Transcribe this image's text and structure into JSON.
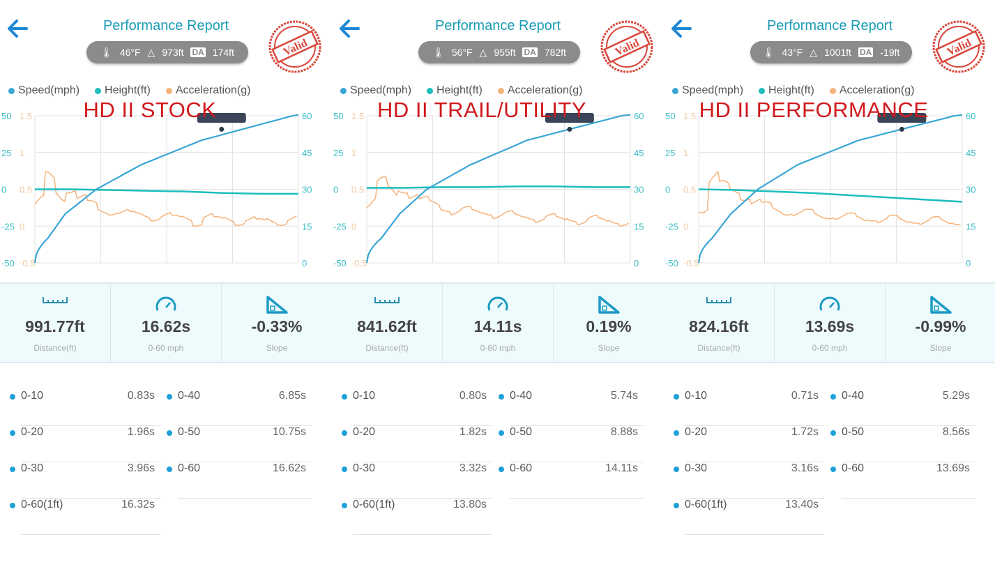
{
  "colors": {
    "speed": "#3aa6d6",
    "height": "#1cbdbd",
    "accel": "#f5b27a",
    "title": "#1a9bb3",
    "caption": "#d0191c",
    "stamp": "#d9463a"
  },
  "legend": [
    "Speed(mph)",
    "Height(ft)",
    "Acceleration(g)"
  ],
  "stats_labels": [
    "Distance(ft)",
    "0-60 mph",
    "Slope"
  ],
  "stamp_text": "Valid",
  "panels": [
    {
      "title": "Performance Report",
      "temp": "46°F",
      "elev": "973ft",
      "da_label": "DA",
      "da": "174ft",
      "caption": "HD II STOCK",
      "distance": "991.77ft",
      "zero_sixty": "16.62s",
      "slope": "-0.33%",
      "splits": [
        {
          "k": "0-10",
          "v": "0.83s"
        },
        {
          "k": "0-40",
          "v": "6.85s"
        },
        {
          "k": "0-20",
          "v": "1.96s"
        },
        {
          "k": "0-50",
          "v": "10.75s"
        },
        {
          "k": "0-30",
          "v": "3.96s"
        },
        {
          "k": "0-60",
          "v": "16.62s"
        },
        {
          "k": "0-60(1ft)",
          "v": "16.32s"
        }
      ],
      "chart_data": {
        "type": "line",
        "left_axis_height": {
          "ticks": [
            "50",
            "25",
            "0",
            "-25",
            "-50"
          ],
          "range": [
            -50,
            50
          ]
        },
        "left_axis_accel": {
          "ticks": [
            "1.5",
            "1",
            "0.5",
            "0",
            "-0.5"
          ],
          "range": [
            -0.5,
            1.5
          ]
        },
        "right_axis_speed": {
          "ticks": [
            "60",
            "45",
            "30",
            "15",
            "0"
          ],
          "range": [
            0,
            60
          ]
        },
        "grid": true,
        "speed": {
          "t": [
            0,
            0.83,
            1.96,
            3.96,
            6.85,
            10.75,
            16.62,
            17
          ],
          "v": [
            0,
            10,
            20,
            30,
            40,
            50,
            60,
            60.3
          ]
        },
        "height": [
          0,
          0,
          -0.5,
          -1,
          -1.5,
          -2.5,
          -3,
          -3
        ],
        "accel": [
          0.3,
          0.62,
          0.45,
          0.5,
          0.38,
          0.3,
          0.22,
          0.2,
          0.18,
          0.15,
          0.16,
          0.12,
          0.14,
          0.1,
          0.12,
          0.05,
          0.13,
          0.08,
          0.1,
          0.06,
          0.09,
          0.05,
          0.08,
          0.06,
          0.1
        ]
      }
    },
    {
      "title": "Performance Report",
      "temp": "56°F",
      "elev": "955ft",
      "da_label": "DA",
      "da": "782ft",
      "caption": "HD II TRAIL/UTILITY",
      "distance": "841.62ft",
      "zero_sixty": "14.11s",
      "slope": "0.19%",
      "splits": [
        {
          "k": "0-10",
          "v": "0.80s"
        },
        {
          "k": "0-40",
          "v": "5.74s"
        },
        {
          "k": "0-20",
          "v": "1.82s"
        },
        {
          "k": "0-50",
          "v": "8.88s"
        },
        {
          "k": "0-30",
          "v": "3.32s"
        },
        {
          "k": "0-60",
          "v": "14.11s"
        },
        {
          "k": "0-60(1ft)",
          "v": "13.80s"
        }
      ],
      "chart_data": {
        "type": "line",
        "left_axis_height": {
          "ticks": [
            "50",
            "25",
            "0",
            "-25",
            "-50"
          ],
          "range": [
            -50,
            50
          ]
        },
        "left_axis_accel": {
          "ticks": [
            "1.5",
            "1",
            "0.5",
            "0",
            "-0.5"
          ],
          "range": [
            -0.5,
            1.5
          ]
        },
        "right_axis_speed": {
          "ticks": [
            "60",
            "45",
            "30",
            "15",
            "0"
          ],
          "range": [
            0,
            60
          ]
        },
        "grid": true,
        "speed": {
          "t": [
            0,
            0.8,
            1.82,
            3.32,
            5.74,
            8.88,
            14.11,
            14.6
          ],
          "v": [
            0,
            10,
            20,
            30,
            40,
            50,
            60,
            60.4
          ]
        },
        "height": [
          1,
          1,
          1.5,
          1.5,
          2,
          2,
          1.5,
          1.5
        ],
        "accel": [
          0.35,
          0.55,
          0.45,
          0.5,
          0.42,
          0.35,
          0.3,
          0.25,
          0.2,
          0.22,
          0.18,
          0.2,
          0.15,
          0.16,
          0.12,
          0.14,
          0.1,
          0.12,
          0.08,
          0.11,
          0.07,
          0.1,
          0.06,
          0.08,
          0.05
        ]
      }
    },
    {
      "title": "Performance Report",
      "temp": "43°F",
      "elev": "1001ft",
      "da_label": "DA",
      "da": "-19ft",
      "caption": "HD II PERFORMANCE",
      "distance": "824.16ft",
      "zero_sixty": "13.69s",
      "slope": "-0.99%",
      "splits": [
        {
          "k": "0-10",
          "v": "0.71s"
        },
        {
          "k": "0-40",
          "v": "5.29s"
        },
        {
          "k": "0-20",
          "v": "1.72s"
        },
        {
          "k": "0-50",
          "v": "8.56s"
        },
        {
          "k": "0-30",
          "v": "3.16s"
        },
        {
          "k": "0-60",
          "v": "13.69s"
        },
        {
          "k": "0-60(1ft)",
          "v": "13.40s"
        }
      ],
      "chart_data": {
        "type": "line",
        "left_axis_height": {
          "ticks": [
            "50",
            "25",
            "0",
            "-25",
            "-50"
          ],
          "range": [
            -50,
            50
          ]
        },
        "left_axis_accel": {
          "ticks": [
            "1.5",
            "1",
            "0.5",
            "0",
            "-0.5"
          ],
          "range": [
            -0.5,
            1.5
          ]
        },
        "right_axis_speed": {
          "ticks": [
            "60",
            "45",
            "30",
            "15",
            "0"
          ],
          "range": [
            0,
            60
          ]
        },
        "grid": true,
        "speed": {
          "t": [
            0,
            0.71,
            1.72,
            3.16,
            5.29,
            8.56,
            13.69,
            14.1
          ],
          "v": [
            0,
            10,
            20,
            30,
            40,
            50,
            60,
            60.3
          ]
        },
        "height": [
          0,
          -0.5,
          -1.5,
          -2.5,
          -4,
          -5.5,
          -7,
          -8.5
        ],
        "accel": [
          0.3,
          0.65,
          0.5,
          0.48,
          0.4,
          0.33,
          0.28,
          0.22,
          0.2,
          0.17,
          0.18,
          0.14,
          0.15,
          0.12,
          0.13,
          0.1,
          0.12,
          0.08,
          0.1,
          0.07,
          0.09,
          0.06,
          0.08,
          0.05,
          0.07
        ]
      }
    }
  ]
}
